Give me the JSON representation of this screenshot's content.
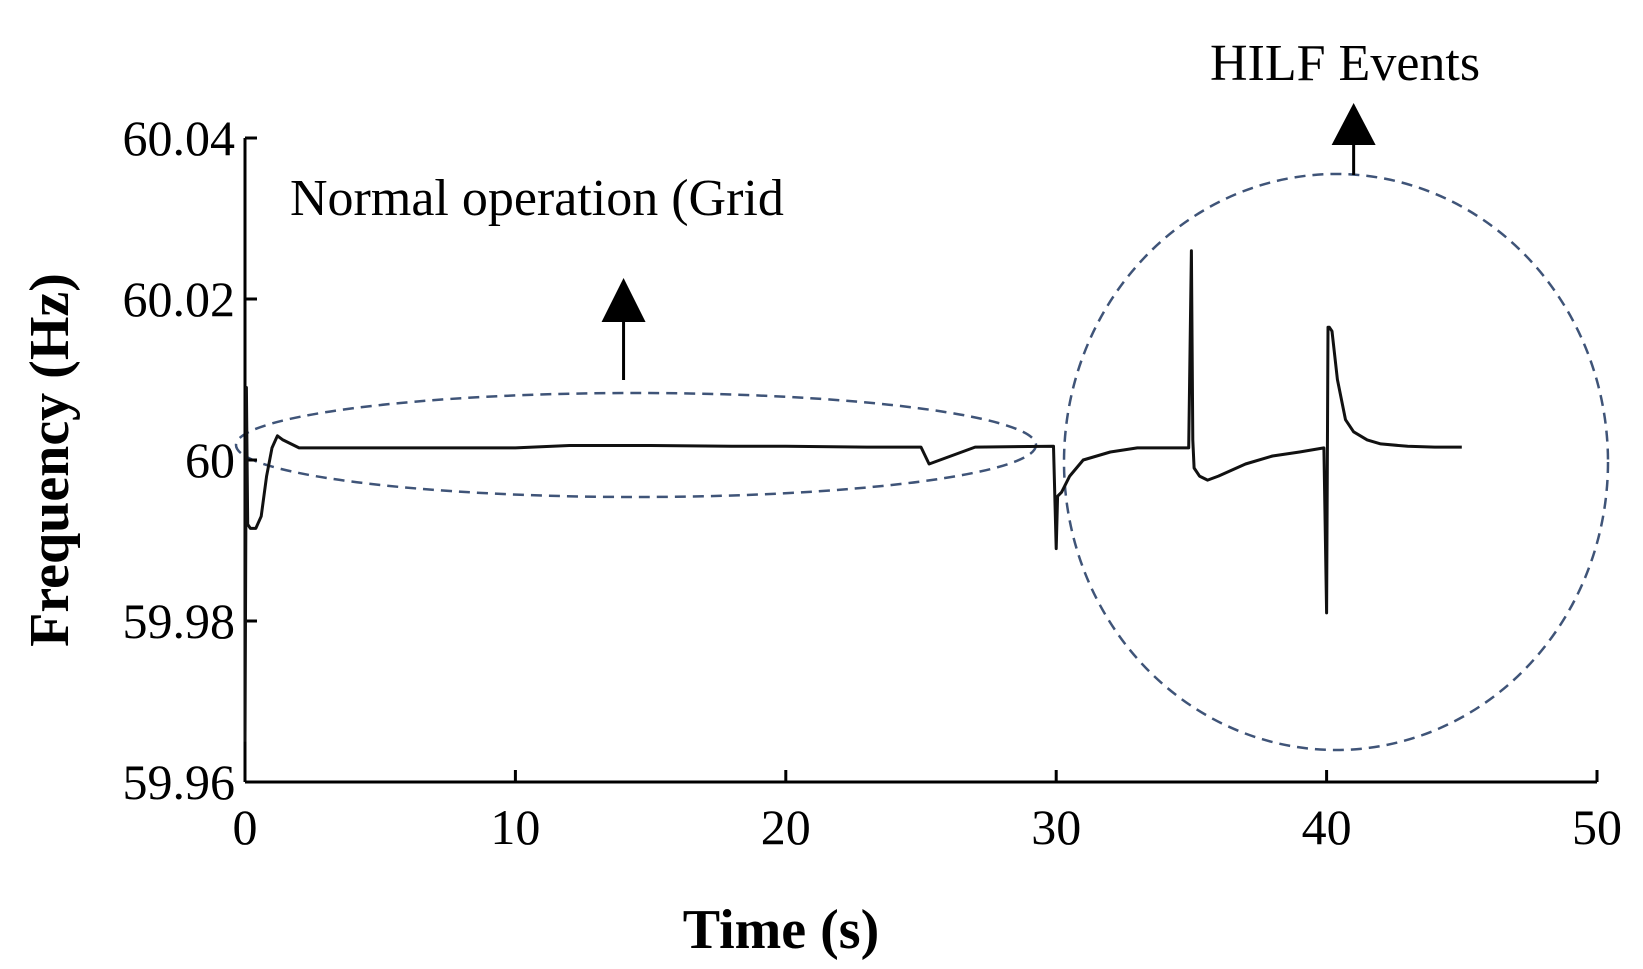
{
  "chart_data": {
    "type": "line",
    "xlabel": "Time (s)",
    "ylabel": "Frequency (Hz)",
    "xlim": [
      0,
      50
    ],
    "ylim": [
      59.96,
      60.04
    ],
    "x_ticks": [
      0,
      10,
      20,
      30,
      40,
      50
    ],
    "x_tick_labels": [
      "0",
      "10",
      "20",
      "30",
      "40",
      "50"
    ],
    "y_ticks": [
      59.96,
      59.98,
      60,
      60.02,
      60.04
    ],
    "y_tick_labels": [
      "59.96",
      "59.98",
      "60",
      "60.02",
      "60.04"
    ],
    "grid": false,
    "line_color": "#111111",
    "annotation_color": "#3f5478",
    "series": [
      {
        "x": [
          0,
          0.05,
          0.1,
          0.2,
          0.4,
          0.6,
          0.8,
          1.0,
          1.2,
          1.4,
          1.7,
          2.0,
          3,
          5,
          8,
          10,
          12,
          15,
          18,
          20,
          23,
          25,
          25.3,
          27,
          29.9,
          30.0,
          30.05,
          30.2,
          30.5,
          31,
          32,
          33,
          34,
          34.9,
          35.0,
          35.05,
          35.1,
          35.3,
          35.6,
          36,
          37,
          38,
          39,
          39.9,
          40.0,
          40.05,
          40.1,
          40.2,
          40.4,
          40.7,
          41,
          41.5,
          42,
          43,
          44,
          45
        ],
        "y": [
          59.965,
          60.009,
          59.992,
          59.9915,
          59.9915,
          59.993,
          59.998,
          60.0015,
          60.003,
          60.0025,
          60.002,
          60.0015,
          60.0015,
          60.0015,
          60.0015,
          60.0015,
          60.0018,
          60.0018,
          60.0017,
          60.0017,
          60.0016,
          60.0016,
          59.9995,
          60.0016,
          60.0017,
          59.989,
          59.9955,
          59.996,
          59.998,
          60.0,
          60.001,
          60.0015,
          60.0015,
          60.0015,
          60.026,
          60.0025,
          59.999,
          59.998,
          59.9975,
          59.998,
          59.9995,
          60.0005,
          60.001,
          60.0015,
          59.981,
          60.0165,
          60.0165,
          60.016,
          60.01,
          60.005,
          60.0035,
          60.0025,
          60.002,
          60.0017,
          60.0016,
          60.0016
        ]
      }
    ],
    "annotations": [
      {
        "text": "Normal operation (Grid",
        "points_to": [
          14,
          60.0
        ],
        "shape": "ellipse"
      },
      {
        "text": "HILF Events",
        "points_to": [
          41,
          60.0
        ],
        "shape": "circle"
      }
    ]
  }
}
